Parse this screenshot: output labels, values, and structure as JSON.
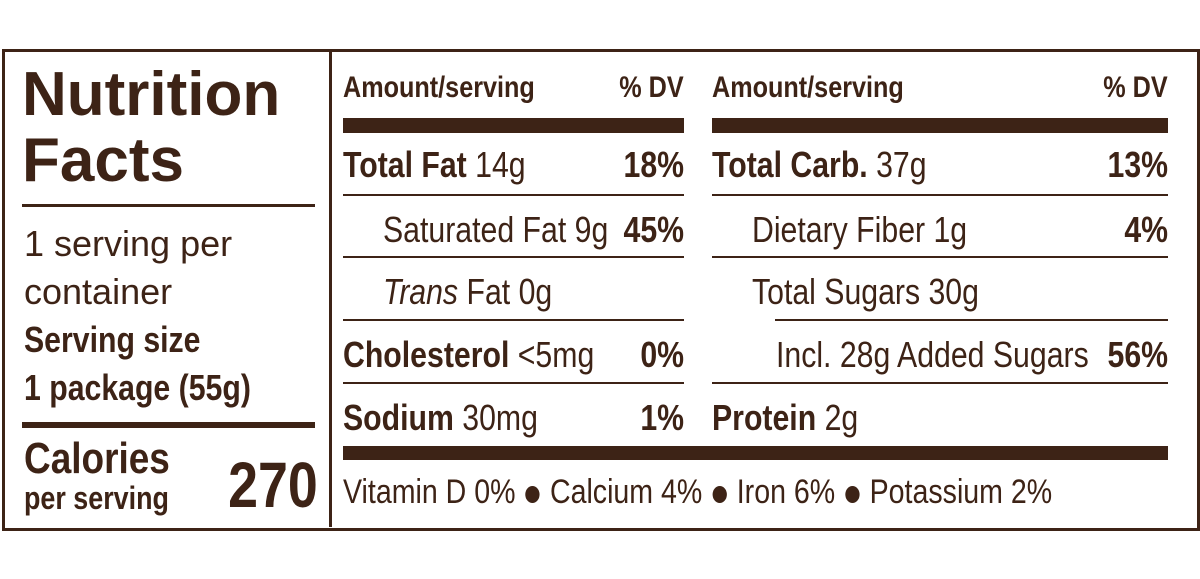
{
  "title": "Nutrition Facts",
  "servings": "1 serving per container",
  "serving_size_label": "Serving size",
  "serving_size": "1 package (55g)",
  "calories_label": "Calories",
  "calories_sublabel": "per serving",
  "calories": 270,
  "columns": [
    {
      "header": {
        "amount": "Amount/serving",
        "dv": "% DV"
      },
      "rows": [
        {
          "name": "Total Fat",
          "detail": "14g",
          "dv": "18%"
        },
        {
          "detail": "Saturated Fat 9g",
          "dv": "45%"
        },
        {
          "emphasis": "Trans",
          "detail": "Fat 0g"
        },
        {
          "name": "Cholesterol",
          "detail": "<5mg",
          "dv": "0%"
        },
        {
          "name": "Sodium",
          "detail": "30mg",
          "dv": "1%"
        }
      ]
    },
    {
      "header": {
        "amount": "Amount/serving",
        "dv": "% DV"
      },
      "rows": [
        {
          "name": "Total Carb.",
          "detail": "37g",
          "dv": "13%"
        },
        {
          "detail": "Dietary Fiber 1g",
          "dv": "4%"
        },
        {
          "detail": "Total Sugars 30g"
        },
        {
          "detail": "Incl. 28g Added Sugars",
          "dv": "56%"
        },
        {
          "name": "Protein",
          "detail": "2g"
        }
      ]
    }
  ],
  "vitamins": [
    "Vitamin D 0%",
    "Calcium 4%",
    "Iron 6%",
    "Potassium 2%"
  ]
}
